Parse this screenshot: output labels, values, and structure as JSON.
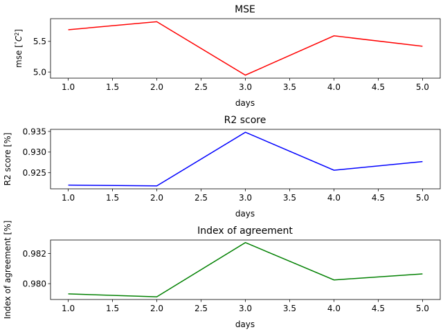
{
  "chart_data": [
    {
      "type": "line",
      "title": "MSE",
      "xlabel": "days",
      "ylabel": "mse [$^\\circ C^2$]",
      "ylabel_display": {
        "base": "mse [",
        "deg": "°",
        "C": "C",
        "sup": "2",
        "end": "]"
      },
      "color": "#ff0000",
      "x": [
        1.0,
        2.0,
        3.0,
        4.0,
        5.0
      ],
      "y": [
        5.69,
        5.82,
        4.95,
        5.59,
        5.42
      ],
      "xlim": [
        0.8,
        5.2
      ],
      "ylim": [
        4.9,
        5.87
      ],
      "xticks": [
        1.0,
        1.5,
        2.0,
        2.5,
        3.0,
        3.5,
        4.0,
        4.5,
        5.0
      ],
      "xtick_labels": [
        "1.0",
        "1.5",
        "2.0",
        "2.5",
        "3.0",
        "3.5",
        "4.0",
        "4.5",
        "5.0"
      ],
      "yticks": [
        5.0,
        5.5
      ],
      "ytick_labels": [
        "5.0",
        "5.5"
      ],
      "grid": false
    },
    {
      "type": "line",
      "title": "R2 score",
      "xlabel": "days",
      "ylabel": "R2 score [%]",
      "color": "#0000ff",
      "x": [
        1.0,
        2.0,
        3.0,
        4.0,
        5.0
      ],
      "y": [
        0.922,
        0.9218,
        0.9348,
        0.9256,
        0.9277
      ],
      "xlim": [
        0.8,
        5.2
      ],
      "ylim": [
        0.9211,
        0.9355
      ],
      "xticks": [
        1.0,
        1.5,
        2.0,
        2.5,
        3.0,
        3.5,
        4.0,
        4.5,
        5.0
      ],
      "xtick_labels": [
        "1.0",
        "1.5",
        "2.0",
        "2.5",
        "3.0",
        "3.5",
        "4.0",
        "4.5",
        "5.0"
      ],
      "yticks": [
        0.925,
        0.93,
        0.935
      ],
      "ytick_labels": [
        "0.925",
        "0.930",
        "0.935"
      ],
      "grid": false
    },
    {
      "type": "line",
      "title": "Index of agreement",
      "xlabel": "days",
      "ylabel": "Index of agreement [%]",
      "color": "#008000",
      "x": [
        1.0,
        2.0,
        3.0,
        4.0,
        5.0
      ],
      "y": [
        0.97932,
        0.97913,
        0.98273,
        0.98025,
        0.98065
      ],
      "xlim": [
        0.8,
        5.2
      ],
      "ylim": [
        0.97895,
        0.9829
      ],
      "xticks": [
        1.0,
        1.5,
        2.0,
        2.5,
        3.0,
        3.5,
        4.0,
        4.5,
        5.0
      ],
      "xtick_labels": [
        "1.0",
        "1.5",
        "2.0",
        "2.5",
        "3.0",
        "3.5",
        "4.0",
        "4.5",
        "5.0"
      ],
      "yticks": [
        0.98,
        0.982
      ],
      "ytick_labels": [
        "0.980",
        "0.982"
      ],
      "grid": false
    }
  ]
}
